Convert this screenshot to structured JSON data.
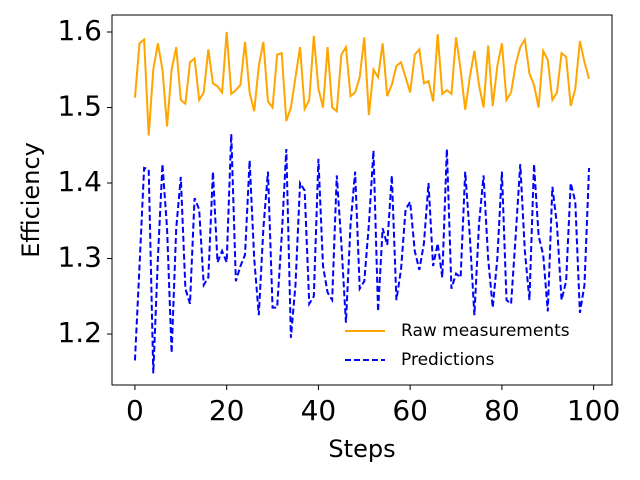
{
  "chart_data": {
    "type": "line",
    "x_label": "Steps",
    "y_label": "Efficiency",
    "x": [
      0,
      1,
      2,
      3,
      4,
      5,
      6,
      7,
      8,
      9,
      10,
      11,
      12,
      13,
      14,
      15,
      16,
      17,
      18,
      19,
      20,
      21,
      22,
      23,
      24,
      25,
      26,
      27,
      28,
      29,
      30,
      31,
      32,
      33,
      34,
      35,
      36,
      37,
      38,
      39,
      40,
      41,
      42,
      43,
      44,
      45,
      46,
      47,
      48,
      49,
      50,
      51,
      52,
      53,
      54,
      55,
      56,
      57,
      58,
      59,
      60,
      61,
      62,
      63,
      64,
      65,
      66,
      67,
      68,
      69,
      70,
      71,
      72,
      73,
      74,
      75,
      76,
      77,
      78,
      79,
      80,
      81,
      82,
      83,
      84,
      85,
      86,
      87,
      88,
      89,
      90,
      91,
      92,
      93,
      94,
      95,
      96,
      97,
      98,
      99
    ],
    "series": [
      {
        "name": "Raw measurements",
        "color": "#ffa500",
        "dash": "solid",
        "values": [
          1.513,
          1.585,
          1.59,
          1.463,
          1.55,
          1.585,
          1.55,
          1.475,
          1.55,
          1.58,
          1.51,
          1.505,
          1.56,
          1.565,
          1.51,
          1.52,
          1.577,
          1.532,
          1.528,
          1.52,
          1.6,
          1.518,
          1.523,
          1.53,
          1.587,
          1.52,
          1.495,
          1.555,
          1.587,
          1.508,
          1.5,
          1.57,
          1.572,
          1.482,
          1.5,
          1.54,
          1.58,
          1.498,
          1.51,
          1.595,
          1.525,
          1.5,
          1.58,
          1.5,
          1.495,
          1.57,
          1.58,
          1.515,
          1.52,
          1.54,
          1.593,
          1.49,
          1.55,
          1.54,
          1.585,
          1.515,
          1.53,
          1.555,
          1.56,
          1.54,
          1.52,
          1.57,
          1.577,
          1.532,
          1.535,
          1.508,
          1.597,
          1.518,
          1.523,
          1.518,
          1.593,
          1.55,
          1.497,
          1.54,
          1.575,
          1.53,
          1.5,
          1.582,
          1.502,
          1.555,
          1.585,
          1.51,
          1.52,
          1.557,
          1.58,
          1.59,
          1.545,
          1.53,
          1.5,
          1.575,
          1.563,
          1.51,
          1.52,
          1.572,
          1.567,
          1.502,
          1.525,
          1.588,
          1.56,
          1.538
        ]
      },
      {
        "name": "Predictions",
        "color": "#0000ff",
        "dash": "dashed",
        "values": [
          1.165,
          1.29,
          1.42,
          1.418,
          1.148,
          1.3,
          1.425,
          1.34,
          1.175,
          1.34,
          1.408,
          1.26,
          1.24,
          1.38,
          1.365,
          1.265,
          1.275,
          1.415,
          1.295,
          1.31,
          1.295,
          1.465,
          1.27,
          1.29,
          1.305,
          1.43,
          1.3,
          1.225,
          1.34,
          1.415,
          1.235,
          1.235,
          1.33,
          1.445,
          1.195,
          1.265,
          1.4,
          1.39,
          1.24,
          1.25,
          1.432,
          1.29,
          1.255,
          1.245,
          1.41,
          1.32,
          1.215,
          1.345,
          1.415,
          1.26,
          1.27,
          1.345,
          1.443,
          1.23,
          1.34,
          1.318,
          1.41,
          1.245,
          1.285,
          1.365,
          1.375,
          1.31,
          1.285,
          1.32,
          1.4,
          1.29,
          1.32,
          1.275,
          1.445,
          1.26,
          1.28,
          1.275,
          1.415,
          1.33,
          1.225,
          1.345,
          1.41,
          1.3,
          1.235,
          1.3,
          1.415,
          1.245,
          1.24,
          1.33,
          1.425,
          1.31,
          1.245,
          1.425,
          1.33,
          1.305,
          1.23,
          1.395,
          1.345,
          1.245,
          1.27,
          1.4,
          1.375,
          1.228,
          1.265,
          1.42
        ]
      }
    ],
    "xlim": [
      -5,
      104
    ],
    "ylim": [
      1.1325,
      1.6225
    ],
    "xticks": [
      0,
      20,
      40,
      60,
      80,
      100
    ],
    "yticks": [
      1.2,
      1.3,
      1.4,
      1.5,
      1.6
    ],
    "legend": "lower right",
    "grid": false
  }
}
